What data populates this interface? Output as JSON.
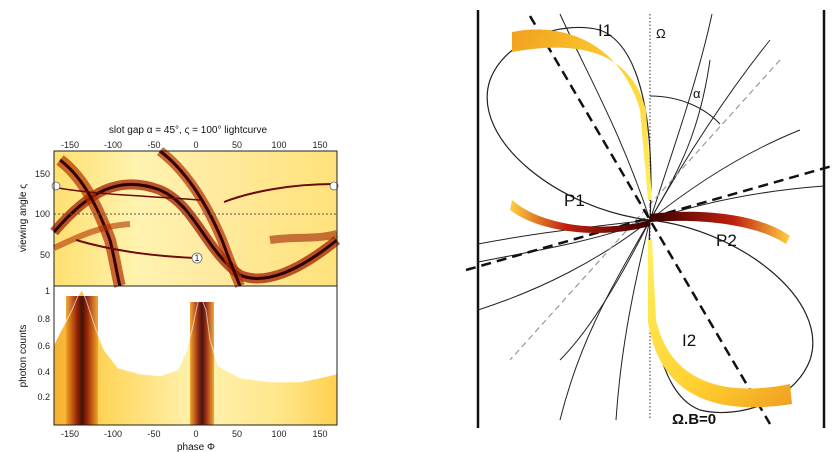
{
  "left_panel": {
    "title": "slot gap α = 45°, ς = 100° lightcurve",
    "top_ticks": [
      "-150",
      "-100",
      "-50",
      "0",
      "50",
      "100",
      "150"
    ],
    "bottom_ticks": [
      "-150",
      "-100",
      "-50",
      "0",
      "50",
      "100",
      "150"
    ],
    "top_plot_y_label": "viewing angle ς",
    "top_plot_y_ticks": [
      "50",
      "100",
      "150"
    ],
    "bottom_plot_y_label": "photon counts",
    "bottom_plot_y_ticks": [
      "0.2",
      "0.4",
      "0.6",
      "0.8",
      "1"
    ],
    "x_label": "phase Φ",
    "marker_label": "1"
  },
  "right_panel": {
    "label_I1": "I1",
    "label_omega": "Ω",
    "label_alpha": "α",
    "label_P1": "P1",
    "label_P2": "P2",
    "label_I2": "I2",
    "label_omega_b": "Ω.B=0"
  },
  "colors": {
    "hot_dark": "#3a0000",
    "hot_red": "#b01010",
    "hot_orange": "#f08010",
    "hot_yellow": "#ffe040",
    "pale": "#fffbe0"
  }
}
